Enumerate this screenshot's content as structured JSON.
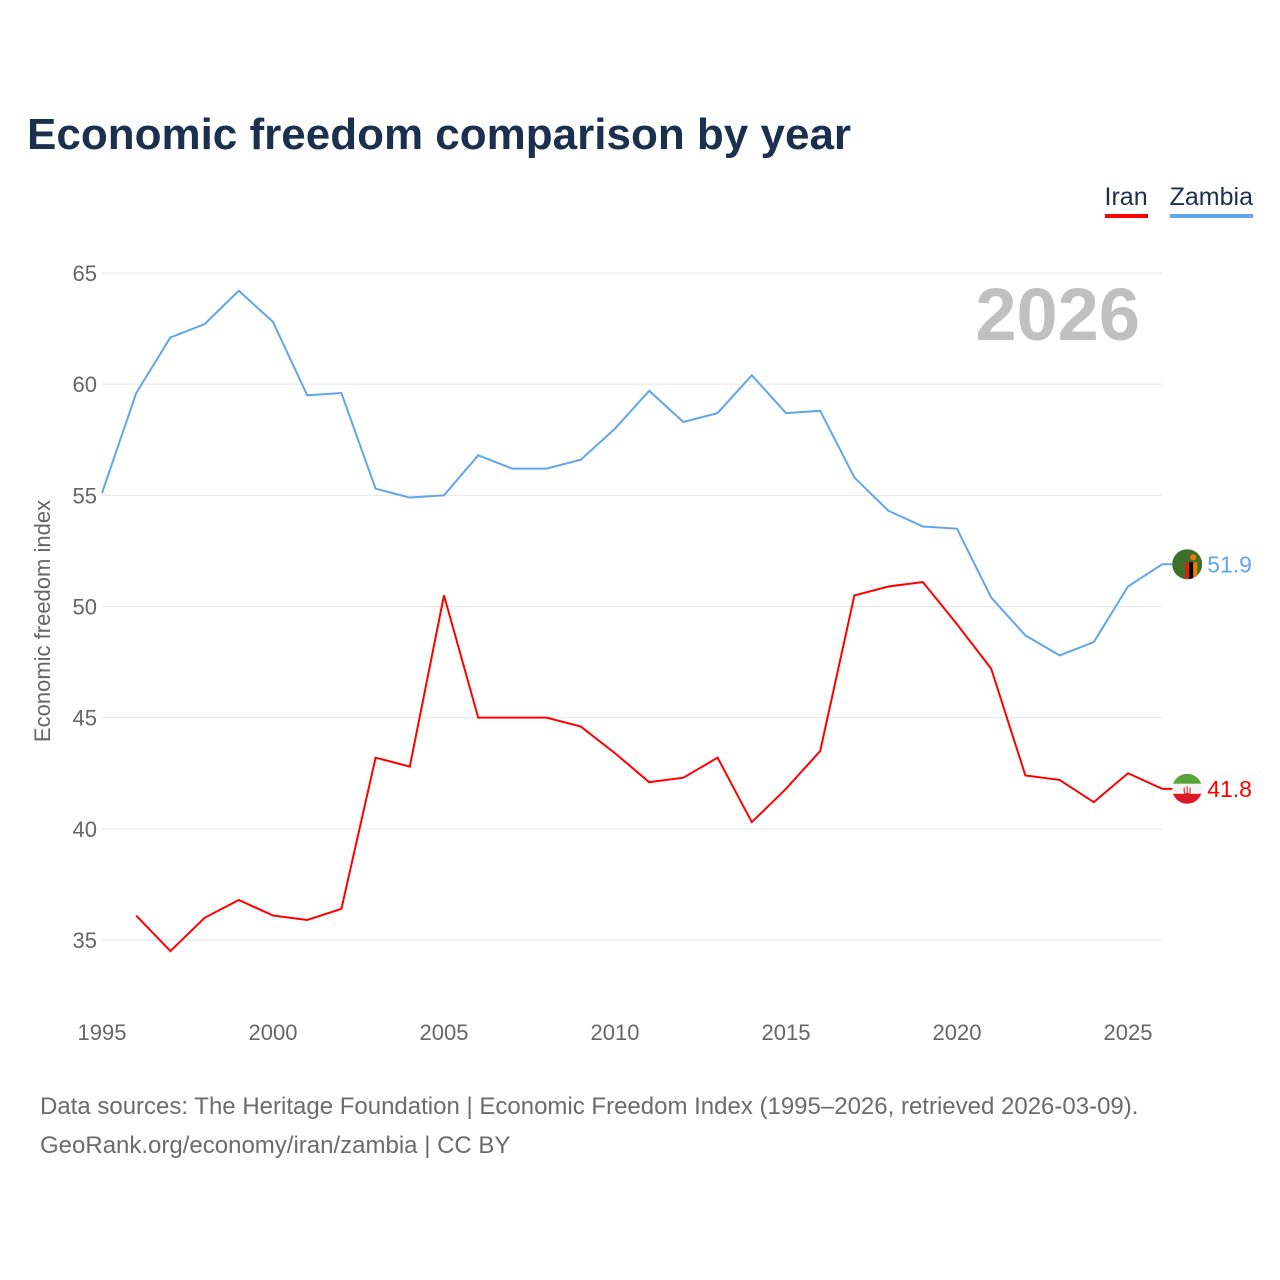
{
  "title": "Economic freedom comparison by year",
  "year_watermark": "2026",
  "legend": [
    {
      "label": "Iran",
      "color": "#ff0000"
    },
    {
      "label": "Zambia",
      "color": "#62a6ea"
    }
  ],
  "source_line1": "Data sources: The Heritage Foundation | Economic Freedom Index (1995–2026, retrieved 2026-03-09).",
  "source_line2": "GeoRank.org/economy/iran/zambia | CC BY",
  "chart_data": {
    "type": "line",
    "title": "Economic freedom comparison by year",
    "xlabel": "",
    "ylabel": "Economic freedom index",
    "xlim": [
      1995,
      2026
    ],
    "ylim": [
      32.5,
      66
    ],
    "xticks": [
      1995,
      2000,
      2005,
      2010,
      2015,
      2020,
      2025
    ],
    "yticks": [
      35,
      40,
      45,
      50,
      55,
      60,
      65
    ],
    "grid": true,
    "legend_position": "top-right",
    "series": [
      {
        "name": "Iran",
        "color": "#ff0000",
        "end_label": "41.8",
        "flag": "iran-flag",
        "x": [
          1996,
          1997,
          1998,
          1999,
          2000,
          2001,
          2002,
          2003,
          2004,
          2005,
          2006,
          2007,
          2008,
          2009,
          2010,
          2011,
          2012,
          2013,
          2014,
          2015,
          2016,
          2017,
          2018,
          2019,
          2020,
          2021,
          2022,
          2023,
          2024,
          2025,
          2026
        ],
        "y": [
          36.1,
          34.5,
          36.0,
          36.8,
          36.1,
          35.9,
          36.4,
          43.2,
          42.8,
          50.5,
          45.0,
          45.0,
          45.0,
          44.6,
          43.4,
          42.1,
          42.3,
          43.2,
          40.3,
          41.8,
          43.5,
          50.5,
          50.9,
          51.1,
          49.2,
          47.2,
          42.4,
          42.2,
          41.2,
          42.5,
          41.8
        ]
      },
      {
        "name": "Zambia",
        "color": "#62a6ea",
        "end_label": "51.9",
        "flag": "zambia-flag",
        "x": [
          1995,
          1996,
          1997,
          1998,
          1999,
          2000,
          2001,
          2002,
          2003,
          2004,
          2005,
          2006,
          2007,
          2008,
          2009,
          2010,
          2011,
          2012,
          2013,
          2014,
          2015,
          2016,
          2017,
          2018,
          2019,
          2020,
          2021,
          2022,
          2023,
          2024,
          2025,
          2026
        ],
        "y": [
          55.1,
          59.6,
          62.1,
          62.7,
          64.2,
          62.8,
          59.5,
          59.6,
          55.3,
          54.9,
          55.0,
          56.8,
          56.2,
          56.2,
          56.6,
          58.0,
          59.7,
          58.3,
          58.7,
          60.4,
          58.7,
          58.8,
          55.8,
          54.3,
          53.6,
          53.5,
          50.4,
          48.7,
          47.8,
          48.4,
          50.9,
          51.9
        ]
      }
    ]
  }
}
